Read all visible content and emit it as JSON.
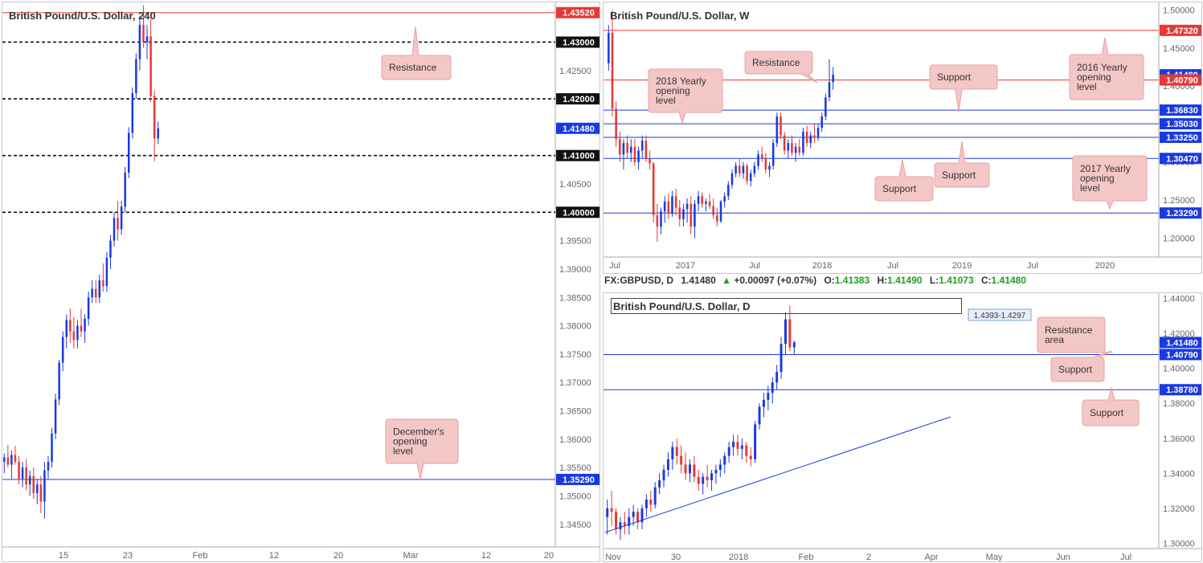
{
  "chart_data": [
    {
      "type": "candlestick",
      "title": "British Pound/U.S. Dollar, 240",
      "ylim": [
        1.341,
        1.437
      ],
      "y_ticks": [
        1.345,
        1.35,
        1.355,
        1.36,
        1.365,
        1.37,
        1.375,
        1.38,
        1.385,
        1.39,
        1.395,
        1.4,
        1.405,
        1.41,
        1.415,
        1.42,
        1.425,
        1.43,
        1.435
      ],
      "x_ticks": [
        "15",
        "23",
        "Feb",
        "12",
        "20",
        "Mar",
        "12",
        "20"
      ],
      "price_labels": [
        {
          "label": "1.43520",
          "value": 1.4352,
          "color": "#e53935"
        },
        {
          "label": "1.43000",
          "value": 1.43,
          "color": "#111111"
        },
        {
          "label": "1.42000",
          "value": 1.42,
          "color": "#111111"
        },
        {
          "label": "1.41480",
          "value": 1.4148,
          "color": "#1a3ae0"
        },
        {
          "label": "1.41000",
          "value": 1.41,
          "color": "#111111"
        },
        {
          "label": "1.40000",
          "value": 1.4,
          "color": "#111111"
        },
        {
          "label": "1.35290",
          "value": 1.3529,
          "color": "#1a3ae0"
        }
      ],
      "lines": [
        {
          "value": 1.4352,
          "style": "solid",
          "color": "#e53935"
        },
        {
          "value": 1.43,
          "style": "dashed",
          "color": "#111111"
        },
        {
          "value": 1.42,
          "style": "dashed",
          "color": "#111111"
        },
        {
          "value": 1.41,
          "style": "dashed",
          "color": "#111111"
        },
        {
          "value": 1.4,
          "style": "dashed",
          "color": "#111111"
        },
        {
          "value": 1.3529,
          "style": "solid",
          "color": "#1a3ae0"
        }
      ],
      "annotations": [
        {
          "text": "Resistance"
        },
        {
          "text": "December's opening level"
        }
      ],
      "candles": [
        [
          1.356,
          1.3575,
          1.354,
          1.3568
        ],
        [
          1.3568,
          1.359,
          1.355,
          1.3555
        ],
        [
          1.3555,
          1.358,
          1.353,
          1.3572
        ],
        [
          1.3572,
          1.3588,
          1.3555,
          1.356
        ],
        [
          1.356,
          1.357,
          1.352,
          1.353
        ],
        [
          1.353,
          1.356,
          1.3515,
          1.355
        ],
        [
          1.355,
          1.3565,
          1.351,
          1.352
        ],
        [
          1.352,
          1.3545,
          1.35,
          1.3535
        ],
        [
          1.3535,
          1.355,
          1.3495,
          1.3505
        ],
        [
          1.3505,
          1.353,
          1.3485,
          1.352
        ],
        [
          1.352,
          1.3535,
          1.347,
          1.349
        ],
        [
          1.349,
          1.356,
          1.346,
          1.3545
        ],
        [
          1.3545,
          1.357,
          1.353,
          1.356
        ],
        [
          1.356,
          1.362,
          1.355,
          1.361
        ],
        [
          1.361,
          1.368,
          1.36,
          1.367
        ],
        [
          1.367,
          1.374,
          1.366,
          1.3735
        ],
        [
          1.3735,
          1.379,
          1.372,
          1.378
        ],
        [
          1.378,
          1.382,
          1.376,
          1.381
        ],
        [
          1.381,
          1.383,
          1.377,
          1.379
        ],
        [
          1.379,
          1.3815,
          1.376,
          1.3775
        ],
        [
          1.3775,
          1.381,
          1.376,
          1.38
        ],
        [
          1.38,
          1.383,
          1.378,
          1.379
        ],
        [
          1.379,
          1.382,
          1.377,
          1.3812
        ],
        [
          1.3812,
          1.386,
          1.38,
          1.385
        ],
        [
          1.385,
          1.388,
          1.384,
          1.3865
        ],
        [
          1.3865,
          1.388,
          1.384,
          1.385
        ],
        [
          1.385,
          1.389,
          1.384,
          1.388
        ],
        [
          1.388,
          1.391,
          1.386,
          1.387
        ],
        [
          1.387,
          1.393,
          1.386,
          1.392
        ],
        [
          1.392,
          1.396,
          1.39,
          1.395
        ],
        [
          1.395,
          1.4,
          1.394,
          1.399
        ],
        [
          1.399,
          1.402,
          1.395,
          1.397
        ],
        [
          1.397,
          1.402,
          1.396,
          1.401
        ],
        [
          1.401,
          1.408,
          1.4,
          1.407
        ],
        [
          1.407,
          1.415,
          1.406,
          1.414
        ],
        [
          1.414,
          1.422,
          1.413,
          1.421
        ],
        [
          1.421,
          1.428,
          1.42,
          1.427
        ],
        [
          1.427,
          1.4345,
          1.425,
          1.433
        ],
        [
          1.433,
          1.4365,
          1.429,
          1.43
        ],
        [
          1.43,
          1.433,
          1.427,
          1.431
        ],
        [
          1.431,
          1.434,
          1.4195,
          1.4205
        ],
        [
          1.4205,
          1.4215,
          1.409,
          1.413
        ],
        [
          1.413,
          1.416,
          1.412,
          1.4148
        ]
      ]
    },
    {
      "type": "candlestick",
      "title": "British Pound/U.S. Dollar, W",
      "ylim": [
        1.175,
        1.51
      ],
      "y_ticks": [
        1.2,
        1.25,
        1.3,
        1.35,
        1.4,
        1.45,
        1.5
      ],
      "y_tick_labels": [
        "1.20000",
        "1.25000",
        "1.30000",
        "1.35000",
        "1.40000",
        "1.45000",
        "1.50000"
      ],
      "x_ticks": [
        "Jul",
        "2017",
        "Jul",
        "2018",
        "Jul",
        "2019",
        "Jul",
        "2020"
      ],
      "price_labels": [
        {
          "label": "1.47320",
          "value": 1.4732,
          "color": "#e53935"
        },
        {
          "label": "1.41480",
          "value": 1.4148,
          "color": "#1a3ae0"
        },
        {
          "label": "1.40790",
          "value": 1.4079,
          "color": "#e53935"
        },
        {
          "label": "1.36830",
          "value": 1.3683,
          "color": "#1a3ae0"
        },
        {
          "label": "1.35030",
          "value": 1.3503,
          "color": "#1a3ae0"
        },
        {
          "label": "1.33250",
          "value": 1.3325,
          "color": "#1a3ae0"
        },
        {
          "label": "1.30470",
          "value": 1.3047,
          "color": "#1a3ae0"
        },
        {
          "label": "1.23290",
          "value": 1.2329,
          "color": "#1a3ae0"
        }
      ],
      "lines": [
        {
          "value": 1.4732,
          "color": "#e53935"
        },
        {
          "value": 1.4079,
          "color": "#e53935"
        },
        {
          "value": 1.3683,
          "color": "#1a3ae0"
        },
        {
          "value": 1.3503,
          "color": "#1a3ae0"
        },
        {
          "value": 1.3325,
          "color": "#1a3ae0"
        },
        {
          "value": 1.3047,
          "color": "#1a3ae0"
        },
        {
          "value": 1.2329,
          "color": "#1a3ae0"
        }
      ],
      "annotations": [
        {
          "text": "2018 Yearly opening level"
        },
        {
          "text": "Resistance"
        },
        {
          "text": "Support"
        },
        {
          "text": "2016 Yearly opening level"
        },
        {
          "text": "Support"
        },
        {
          "text": "Support"
        },
        {
          "text": "2017 Yearly opening level"
        }
      ],
      "candles": [
        [
          1.43,
          1.48,
          1.42,
          1.47
        ],
        [
          1.47,
          1.5,
          1.36,
          1.37
        ],
        [
          1.37,
          1.38,
          1.32,
          1.33
        ],
        [
          1.33,
          1.34,
          1.3,
          1.31
        ],
        [
          1.31,
          1.33,
          1.29,
          1.325
        ],
        [
          1.325,
          1.335,
          1.305,
          1.312
        ],
        [
          1.312,
          1.33,
          1.3,
          1.32
        ],
        [
          1.32,
          1.33,
          1.295,
          1.3
        ],
        [
          1.3,
          1.32,
          1.29,
          1.315
        ],
        [
          1.315,
          1.335,
          1.305,
          1.328
        ],
        [
          1.328,
          1.335,
          1.3,
          1.305
        ],
        [
          1.305,
          1.315,
          1.29,
          1.298
        ],
        [
          1.298,
          1.3,
          1.22,
          1.23
        ],
        [
          1.23,
          1.245,
          1.195,
          1.215
        ],
        [
          1.215,
          1.24,
          1.205,
          1.235
        ],
        [
          1.235,
          1.255,
          1.22,
          1.248
        ],
        [
          1.248,
          1.258,
          1.225,
          1.232
        ],
        [
          1.232,
          1.262,
          1.228,
          1.255
        ],
        [
          1.255,
          1.265,
          1.23,
          1.24
        ],
        [
          1.24,
          1.25,
          1.215,
          1.225
        ],
        [
          1.225,
          1.245,
          1.215,
          1.238
        ],
        [
          1.238,
          1.252,
          1.22,
          1.245
        ],
        [
          1.245,
          1.255,
          1.205,
          1.215
        ],
        [
          1.215,
          1.25,
          1.2,
          1.245
        ],
        [
          1.245,
          1.262,
          1.235,
          1.255
        ],
        [
          1.255,
          1.26,
          1.24,
          1.245
        ],
        [
          1.245,
          1.252,
          1.235,
          1.248
        ],
        [
          1.248,
          1.258,
          1.238,
          1.242
        ],
        [
          1.242,
          1.252,
          1.225,
          1.23
        ],
        [
          1.23,
          1.24,
          1.215,
          1.222
        ],
        [
          1.222,
          1.25,
          1.22,
          1.248
        ],
        [
          1.248,
          1.26,
          1.24,
          1.255
        ],
        [
          1.255,
          1.275,
          1.25,
          1.27
        ],
        [
          1.27,
          1.29,
          1.265,
          1.285
        ],
        [
          1.285,
          1.3,
          1.28,
          1.295
        ],
        [
          1.295,
          1.305,
          1.28,
          1.285
        ],
        [
          1.285,
          1.3,
          1.278,
          1.295
        ],
        [
          1.295,
          1.298,
          1.27,
          1.275
        ],
        [
          1.275,
          1.29,
          1.268,
          1.285
        ],
        [
          1.285,
          1.3,
          1.28,
          1.295
        ],
        [
          1.295,
          1.315,
          1.29,
          1.31
        ],
        [
          1.31,
          1.32,
          1.3,
          1.305
        ],
        [
          1.305,
          1.312,
          1.285,
          1.29
        ],
        [
          1.29,
          1.3,
          1.28,
          1.295
        ],
        [
          1.295,
          1.33,
          1.29,
          1.325
        ],
        [
          1.325,
          1.365,
          1.32,
          1.36
        ],
        [
          1.36,
          1.365,
          1.33,
          1.335
        ],
        [
          1.335,
          1.34,
          1.31,
          1.315
        ],
        [
          1.315,
          1.33,
          1.305,
          1.325
        ],
        [
          1.325,
          1.335,
          1.308,
          1.312
        ],
        [
          1.312,
          1.325,
          1.3,
          1.32
        ],
        [
          1.32,
          1.33,
          1.308,
          1.312
        ],
        [
          1.312,
          1.345,
          1.308,
          1.34
        ],
        [
          1.34,
          1.348,
          1.32,
          1.325
        ],
        [
          1.325,
          1.34,
          1.318,
          1.335
        ],
        [
          1.335,
          1.35,
          1.325,
          1.332
        ],
        [
          1.332,
          1.35,
          1.328,
          1.345
        ],
        [
          1.345,
          1.365,
          1.34,
          1.36
        ],
        [
          1.36,
          1.39,
          1.355,
          1.385
        ],
        [
          1.385,
          1.435,
          1.38,
          1.405
        ],
        [
          1.405,
          1.425,
          1.395,
          1.4148
        ]
      ]
    },
    {
      "type": "candlestick",
      "title": "British Pound/U.S. Dollar, D",
      "ylim": [
        1.297,
        1.443
      ],
      "y_ticks": [
        1.3,
        1.32,
        1.34,
        1.36,
        1.38,
        1.4,
        1.42,
        1.44
      ],
      "y_tick_labels": [
        "1.30000",
        "1.32000",
        "1.34000",
        "1.36000",
        "1.38000",
        "1.40000",
        "1.42000",
        "1.44000"
      ],
      "x_ticks": [
        "Nov",
        "30",
        "2018",
        "Feb",
        "2",
        "Apr",
        "May",
        "Jun",
        "Jul"
      ],
      "price_labels": [
        {
          "label": "1.41480",
          "value": 1.4148,
          "color": "#1a3ae0"
        },
        {
          "label": "1.40790",
          "value": 1.4079,
          "color": "#1a3ae0"
        },
        {
          "label": "1.38780",
          "value": 1.3878,
          "color": "#1a3ae0"
        }
      ],
      "lines": [
        {
          "value": 1.4079,
          "color": "#1a3ae0"
        },
        {
          "value": 1.3878,
          "color": "#1a3ae0"
        }
      ],
      "zone_label": "1.4393-1.4297",
      "zone": [
        1.4297,
        1.4393
      ],
      "annotations": [
        {
          "text": "Resistance area"
        },
        {
          "text": "Support"
        },
        {
          "text": "Support"
        }
      ],
      "candles": [
        [
          1.315,
          1.325,
          1.305,
          1.32
        ],
        [
          1.32,
          1.33,
          1.31,
          1.318
        ],
        [
          1.318,
          1.32,
          1.305,
          1.308
        ],
        [
          1.308,
          1.315,
          1.302,
          1.312
        ],
        [
          1.312,
          1.318,
          1.305,
          1.31
        ],
        [
          1.31,
          1.32,
          1.305,
          1.315
        ],
        [
          1.315,
          1.322,
          1.31,
          1.318
        ],
        [
          1.318,
          1.32,
          1.308,
          1.312
        ],
        [
          1.312,
          1.322,
          1.308,
          1.32
        ],
        [
          1.32,
          1.328,
          1.315,
          1.325
        ],
        [
          1.325,
          1.33,
          1.318,
          1.322
        ],
        [
          1.322,
          1.335,
          1.32,
          1.332
        ],
        [
          1.332,
          1.34,
          1.328,
          1.336
        ],
        [
          1.336,
          1.345,
          1.332,
          1.342
        ],
        [
          1.342,
          1.352,
          1.338,
          1.348
        ],
        [
          1.348,
          1.358,
          1.342,
          1.355
        ],
        [
          1.355,
          1.36,
          1.345,
          1.35
        ],
        [
          1.35,
          1.356,
          1.34,
          1.345
        ],
        [
          1.345,
          1.352,
          1.336,
          1.34
        ],
        [
          1.34,
          1.348,
          1.335,
          1.345
        ],
        [
          1.345,
          1.35,
          1.335,
          1.338
        ],
        [
          1.338,
          1.342,
          1.33,
          1.334
        ],
        [
          1.334,
          1.34,
          1.328,
          1.338
        ],
        [
          1.338,
          1.345,
          1.332,
          1.336
        ],
        [
          1.336,
          1.342,
          1.33,
          1.34
        ],
        [
          1.34,
          1.345,
          1.334,
          1.342
        ],
        [
          1.342,
          1.348,
          1.338,
          1.345
        ],
        [
          1.345,
          1.352,
          1.34,
          1.35
        ],
        [
          1.35,
          1.358,
          1.346,
          1.355
        ],
        [
          1.355,
          1.362,
          1.35,
          1.358
        ],
        [
          1.358,
          1.362,
          1.35,
          1.354
        ],
        [
          1.354,
          1.36,
          1.348,
          1.356
        ],
        [
          1.356,
          1.358,
          1.346,
          1.35
        ],
        [
          1.35,
          1.355,
          1.344,
          1.348
        ],
        [
          1.348,
          1.37,
          1.346,
          1.368
        ],
        [
          1.368,
          1.38,
          1.365,
          1.378
        ],
        [
          1.378,
          1.386,
          1.372,
          1.382
        ],
        [
          1.382,
          1.39,
          1.376,
          1.386
        ],
        [
          1.386,
          1.395,
          1.38,
          1.392
        ],
        [
          1.392,
          1.402,
          1.388,
          1.398
        ],
        [
          1.398,
          1.418,
          1.394,
          1.414
        ],
        [
          1.414,
          1.432,
          1.408,
          1.428
        ],
        [
          1.428,
          1.436,
          1.41,
          1.412
        ],
        [
          1.412,
          1.416,
          1.408,
          1.4148
        ]
      ]
    }
  ],
  "quote": {
    "symbol": "FX:GBPUSD, D",
    "last": "1.41480",
    "arrow": "▲",
    "change": "+0.00097 (+0.07%)",
    "o_label": "O:",
    "o": "1.41383",
    "h_label": "H:",
    "h": "1.41490",
    "l_label": "L:",
    "l": "1.41073",
    "c_label": "C:",
    "c": "1.41480"
  },
  "colors": {
    "up": "#1a3ae0",
    "down": "#e53935",
    "callout_fill": "#f4c7c7",
    "callout_stroke": "#e8a0a0",
    "axis_text": "#666666"
  }
}
